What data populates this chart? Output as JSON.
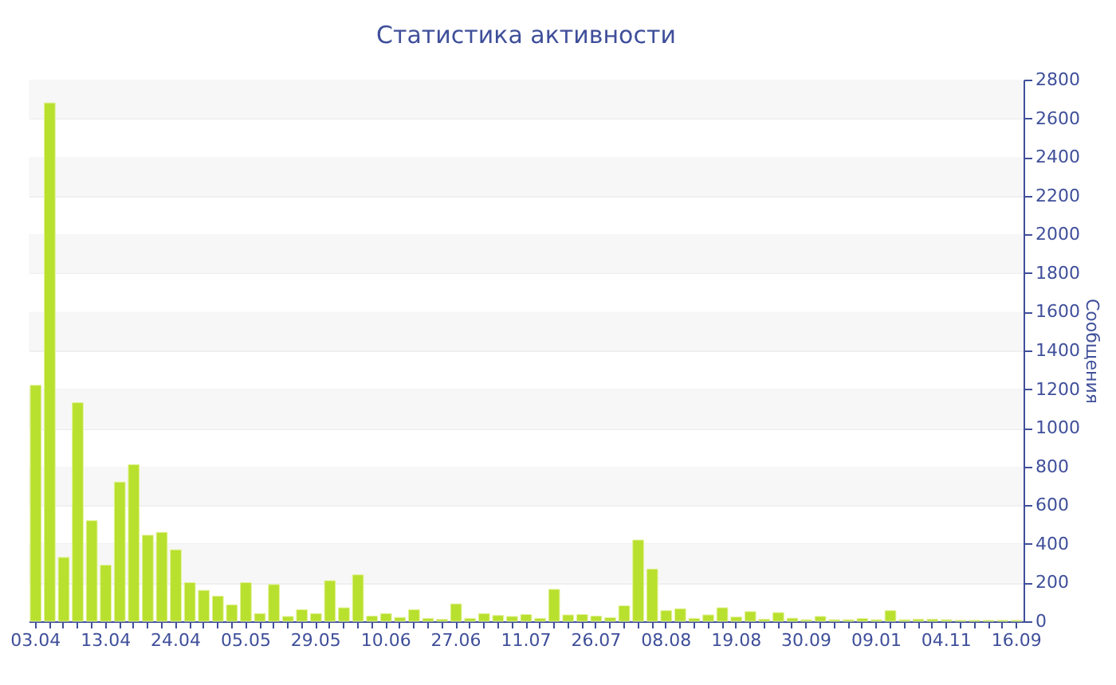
{
  "chart_data": {
    "type": "bar",
    "title": "Статистика активности",
    "ylabel": "Сообщения",
    "categories": [
      "03.04",
      null,
      null,
      null,
      null,
      "13.04",
      null,
      null,
      null,
      null,
      "24.04",
      null,
      null,
      null,
      null,
      "05.05",
      null,
      null,
      null,
      null,
      "29.05",
      null,
      null,
      null,
      null,
      "10.06",
      null,
      null,
      null,
      null,
      "27.06",
      null,
      null,
      null,
      null,
      "11.07",
      null,
      null,
      null,
      null,
      "26.07",
      null,
      null,
      null,
      null,
      "08.08",
      null,
      null,
      null,
      null,
      "19.08",
      null,
      null,
      null,
      null,
      "30.09",
      null,
      null,
      null,
      null,
      "09.01",
      null,
      null,
      null,
      null,
      "04.11",
      null,
      null,
      null,
      null,
      "16.09"
    ],
    "values": [
      1220,
      2680,
      330,
      1130,
      520,
      290,
      720,
      810,
      445,
      460,
      370,
      200,
      160,
      130,
      85,
      200,
      40,
      190,
      25,
      60,
      40,
      210,
      70,
      240,
      27,
      40,
      20,
      60,
      15,
      10,
      90,
      15,
      40,
      30,
      25,
      35,
      15,
      165,
      33,
      35,
      27,
      19,
      80,
      420,
      270,
      55,
      65,
      15,
      33,
      70,
      22,
      50,
      11,
      45,
      16,
      8,
      25,
      8,
      8,
      14,
      8,
      55,
      8,
      11,
      11,
      8,
      5,
      5,
      5,
      5,
      5
    ],
    "color": "#b8e02e",
    "ylim": [
      0,
      2800
    ],
    "yticks": [
      0,
      200,
      400,
      600,
      800,
      1000,
      1200,
      1400,
      1600,
      1800,
      2000,
      2200,
      2400,
      2600,
      2800
    ],
    "grid": true
  }
}
